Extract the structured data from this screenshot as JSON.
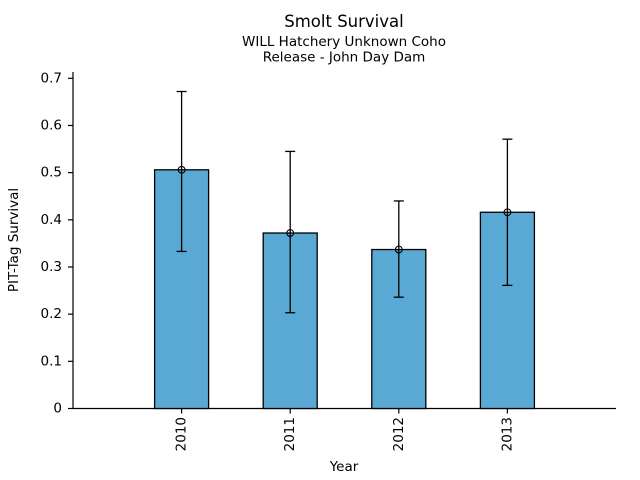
{
  "chart_data": {
    "type": "bar",
    "title": "Smolt Survival",
    "subtitle_line1": "WILL Hatchery Unknown Coho",
    "subtitle_line2": "Release - John Day Dam",
    "xlabel": "Year",
    "ylabel": "PIT-Tag Survival",
    "categories": [
      "2010",
      "2011",
      "2012",
      "2013"
    ],
    "values": [
      0.506,
      0.372,
      0.337,
      0.416
    ],
    "error_low": [
      0.333,
      0.203,
      0.236,
      0.261
    ],
    "error_high": [
      0.672,
      0.545,
      0.44,
      0.571
    ],
    "ylim": [
      0,
      0.7
    ],
    "yticks": [
      0,
      0.1,
      0.2,
      0.3,
      0.4,
      0.5,
      0.6,
      0.7
    ],
    "ytick_labels": [
      "0",
      "0.1",
      "0.2",
      "0.3",
      "0.4",
      "0.5",
      "0.6",
      "0.7"
    ],
    "xtick_rotation": 90,
    "grid": false,
    "legend": false,
    "bar_color": "#5AA9D4",
    "bar_edge_color": "#000000",
    "error_color": "#000000",
    "axis_color": "#000000",
    "marker": "open-circle"
  }
}
